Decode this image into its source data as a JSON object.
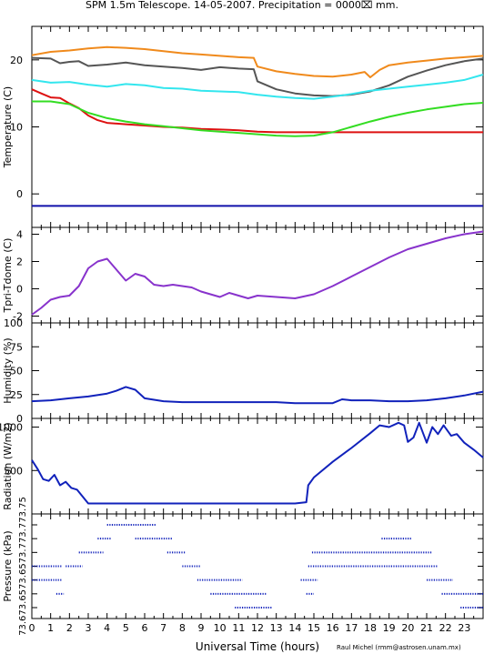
{
  "title": "SPM 1.5m Telescope. 14-05-2007. Precipitation = 0000⌧ mm.",
  "credit": "Raul Michel (rmm@astrosen.unam.mx)",
  "chart_data": [
    {
      "type": "line",
      "panel": "temperature",
      "ylabel": "Temperature (C)",
      "ylim": [
        -5,
        25
      ],
      "yticks": [
        0,
        10,
        20
      ],
      "xlim": [
        0,
        24
      ],
      "colors": {
        "orange": "#f08a1c",
        "gray": "#555555",
        "cyan": "#33e6ee",
        "red": "#dd1111",
        "green": "#33dd22",
        "blue": "#1111aa"
      },
      "series": [
        {
          "key": "orange",
          "color": "#f08a1c",
          "x": [
            0,
            1,
            2,
            3,
            4,
            5,
            6,
            7,
            8,
            9,
            10,
            11,
            11.8,
            12,
            13,
            14,
            15,
            16,
            17,
            17.7,
            18,
            18.5,
            19,
            20,
            21,
            22,
            23,
            24
          ],
          "y": [
            20.7,
            21.2,
            21.4,
            21.7,
            21.9,
            21.8,
            21.6,
            21.3,
            21.0,
            20.8,
            20.6,
            20.4,
            20.3,
            19.0,
            18.3,
            17.9,
            17.6,
            17.5,
            17.8,
            18.2,
            17.4,
            18.5,
            19.2,
            19.6,
            19.9,
            20.2,
            20.4,
            20.6
          ]
        },
        {
          "key": "gray",
          "color": "#555555",
          "x": [
            0,
            1,
            1.5,
            2,
            2.5,
            3,
            4,
            5,
            6,
            7,
            8,
            9,
            10,
            11,
            11.8,
            12,
            13,
            14,
            15,
            16,
            17,
            18,
            19,
            20,
            21,
            22,
            23,
            24
          ],
          "y": [
            20.3,
            20.2,
            19.5,
            19.7,
            19.8,
            19.1,
            19.3,
            19.6,
            19.2,
            19.0,
            18.8,
            18.5,
            18.9,
            18.7,
            18.6,
            16.8,
            15.6,
            15.0,
            14.7,
            14.6,
            14.8,
            15.3,
            16.2,
            17.5,
            18.4,
            19.2,
            19.8,
            20.2
          ]
        },
        {
          "key": "cyan",
          "color": "#33e6ee",
          "x": [
            0,
            1,
            2,
            3,
            4,
            5,
            6,
            7,
            8,
            9,
            10,
            11,
            12,
            13,
            14,
            15,
            16,
            17,
            18,
            19,
            20,
            21,
            22,
            23,
            24
          ],
          "y": [
            17.0,
            16.6,
            16.7,
            16.3,
            16.0,
            16.4,
            16.2,
            15.8,
            15.7,
            15.4,
            15.3,
            15.2,
            14.8,
            14.5,
            14.3,
            14.2,
            14.5,
            14.9,
            15.4,
            15.7,
            16.0,
            16.3,
            16.6,
            17.0,
            17.8
          ]
        },
        {
          "key": "red",
          "color": "#dd1111",
          "x": [
            0,
            0.5,
            1,
            1.5,
            2,
            2.5,
            3,
            3.5,
            4,
            5,
            6,
            7,
            8,
            9,
            10,
            11,
            12,
            13,
            14,
            15,
            16,
            17,
            18,
            19,
            20,
            21,
            22,
            23,
            24
          ],
          "y": [
            15.6,
            15.0,
            14.4,
            14.3,
            13.5,
            12.8,
            11.7,
            11.0,
            10.6,
            10.4,
            10.2,
            10.0,
            9.9,
            9.7,
            9.6,
            9.5,
            9.3,
            9.2,
            9.2,
            9.2,
            9.2,
            9.2,
            9.2,
            9.2,
            9.2,
            9.2,
            9.2,
            9.2,
            9.2
          ]
        },
        {
          "key": "green",
          "color": "#33dd22",
          "x": [
            0,
            1,
            2,
            3,
            4,
            5,
            6,
            7,
            8,
            9,
            10,
            11,
            12,
            13,
            14,
            15,
            16,
            17,
            18,
            19,
            20,
            21,
            22,
            23,
            24
          ],
          "y": [
            13.8,
            13.8,
            13.4,
            12.1,
            11.3,
            10.8,
            10.4,
            10.1,
            9.8,
            9.5,
            9.3,
            9.1,
            8.9,
            8.7,
            8.6,
            8.7,
            9.2,
            10.0,
            10.8,
            11.5,
            12.1,
            12.6,
            13.0,
            13.4,
            13.6
          ]
        },
        {
          "key": "blue",
          "color": "#1111aa",
          "x": [
            0,
            24
          ],
          "y": [
            -1.8,
            -1.8
          ]
        }
      ]
    },
    {
      "type": "line",
      "panel": "tpri_tdome",
      "ylabel": "Tpri-Tdome (C)",
      "ylim": [
        -2.5,
        4.5
      ],
      "yticks": [
        -2,
        0,
        2,
        4
      ],
      "xlim": [
        0,
        24
      ],
      "color": "#8833cc",
      "x": [
        0,
        0.5,
        1,
        1.5,
        2,
        2.5,
        3,
        3.5,
        4,
        4.5,
        5,
        5.5,
        6,
        6.5,
        7,
        7.5,
        8,
        8.5,
        9,
        9.5,
        10,
        10.5,
        11,
        11.5,
        12,
        13,
        14,
        15,
        16,
        17,
        18,
        19,
        20,
        21,
        22,
        23,
        24
      ],
      "y": [
        -1.9,
        -1.4,
        -0.8,
        -0.6,
        -0.5,
        0.2,
        1.5,
        2.0,
        2.2,
        1.4,
        0.6,
        1.1,
        0.9,
        0.3,
        0.2,
        0.3,
        0.2,
        0.1,
        -0.2,
        -0.4,
        -0.6,
        -0.3,
        -0.5,
        -0.7,
        -0.5,
        -0.6,
        -0.7,
        -0.4,
        0.2,
        0.9,
        1.6,
        2.3,
        2.9,
        3.3,
        3.7,
        4.0,
        4.2
      ]
    },
    {
      "type": "line",
      "panel": "humidity",
      "ylabel": "Humidity (%)",
      "ylim": [
        0,
        100
      ],
      "yticks": [
        0,
        25,
        50,
        75,
        100
      ],
      "xlim": [
        0,
        24
      ],
      "color": "#1122bb",
      "x": [
        0,
        1,
        2,
        3,
        4,
        4.5,
        5,
        5.5,
        6,
        7,
        8,
        9,
        10,
        11,
        12,
        13,
        14,
        15,
        16,
        16.5,
        17,
        18,
        19,
        20,
        21,
        22,
        23,
        24
      ],
      "y": [
        18,
        19,
        21,
        23,
        26,
        29,
        33,
        30,
        21,
        18,
        17,
        17,
        17,
        17,
        17,
        17,
        16,
        16,
        16,
        20,
        19,
        19,
        18,
        18,
        19,
        21,
        24,
        28
      ]
    },
    {
      "type": "line",
      "panel": "radiation",
      "ylabel": "Radiation (W/m2)",
      "ylim": [
        0,
        1100
      ],
      "yticks": [
        500,
        1000
      ],
      "xlim": [
        0,
        24
      ],
      "color": "#1122bb",
      "x": [
        0,
        0.3,
        0.6,
        0.9,
        1.2,
        1.5,
        1.8,
        2.1,
        2.4,
        3,
        4,
        6,
        8,
        10,
        12,
        13,
        14,
        14.6,
        14.7,
        15,
        16,
        17,
        18,
        18.5,
        19,
        19.5,
        19.8,
        20,
        20.3,
        20.6,
        21,
        21.3,
        21.6,
        21.9,
        22.3,
        22.6,
        23,
        23.5,
        24
      ],
      "y": [
        620,
        520,
        400,
        380,
        450,
        330,
        370,
        300,
        280,
        120,
        120,
        120,
        120,
        120,
        120,
        120,
        120,
        135,
        330,
        420,
        600,
        760,
        930,
        1020,
        1000,
        1050,
        1020,
        830,
        880,
        1050,
        820,
        1000,
        920,
        1020,
        900,
        920,
        820,
        740,
        650
      ]
    },
    {
      "type": "scatter",
      "panel": "pressure",
      "ylabel": "Pressure (kPa)",
      "yticklabels": [
        "73.6",
        "73.65",
        "73.7",
        "73.75"
      ],
      "yticks_display": [
        "73.6",
        "73.65",
        "73.65",
        "73.7",
        "73.7",
        "73.75"
      ],
      "levels": [
        0,
        1,
        2,
        3,
        4,
        5,
        6
      ],
      "xlim": [
        0,
        24
      ],
      "color": "#1122bb",
      "segments": [
        {
          "level": 3,
          "x0": 0.0,
          "x1": 1.6
        },
        {
          "level": 2,
          "x0": 0.0,
          "x1": 1.6
        },
        {
          "level": 1,
          "x0": 1.3,
          "x1": 1.7
        },
        {
          "level": 3,
          "x0": 1.8,
          "x1": 2.7
        },
        {
          "level": 4,
          "x0": 2.5,
          "x1": 3.8
        },
        {
          "level": 5,
          "x0": 3.5,
          "x1": 4.2
        },
        {
          "level": 6,
          "x0": 4.0,
          "x1": 6.6
        },
        {
          "level": 5,
          "x0": 5.5,
          "x1": 7.5
        },
        {
          "level": 4,
          "x0": 7.2,
          "x1": 8.2
        },
        {
          "level": 3,
          "x0": 8.0,
          "x1": 9.0
        },
        {
          "level": 2,
          "x0": 8.8,
          "x1": 11.2
        },
        {
          "level": 1,
          "x0": 9.5,
          "x1": 12.5
        },
        {
          "level": 0,
          "x0": 10.8,
          "x1": 12.8
        },
        {
          "level": 1,
          "x0": 14.6,
          "x1": 15.0
        },
        {
          "level": 2,
          "x0": 14.3,
          "x1": 15.2
        },
        {
          "level": 3,
          "x0": 14.7,
          "x1": 21.6
        },
        {
          "level": 4,
          "x0": 14.9,
          "x1": 21.3
        },
        {
          "level": 5,
          "x0": 18.6,
          "x1": 20.2
        },
        {
          "level": 2,
          "x0": 21.0,
          "x1": 22.4
        },
        {
          "level": 1,
          "x0": 21.8,
          "x1": 24.0
        },
        {
          "level": 0,
          "x0": 22.8,
          "x1": 24.0
        }
      ]
    }
  ],
  "xaxis": {
    "label": "Universal Time (hours)",
    "ticks": [
      0,
      1,
      2,
      3,
      4,
      5,
      6,
      7,
      8,
      9,
      10,
      11,
      12,
      13,
      14,
      15,
      16,
      17,
      18,
      19,
      20,
      21,
      22,
      23
    ]
  }
}
